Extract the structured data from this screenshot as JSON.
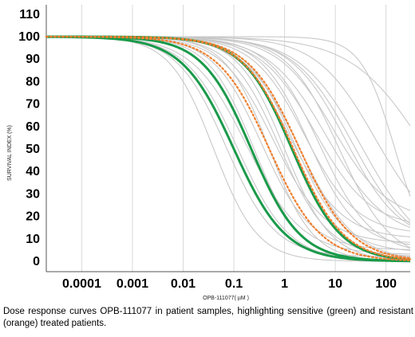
{
  "caption": "Dose response curves OPB-111077 in patient samples, highlighting sensitive (green) and resistant (orange) treated patients.",
  "chart_data": {
    "type": "line",
    "title": "",
    "xlabel": "OPB-111077( µM )",
    "ylabel": "SURVIVAL INDEX (%)",
    "xscale": "log",
    "xlim": [
      2e-05,
      300
    ],
    "ylim": [
      0,
      110
    ],
    "xticks": [
      0.0001,
      0.001,
      0.01,
      0.1,
      1,
      10,
      100
    ],
    "xtick_labels": [
      "0.0001",
      "0.001",
      "0.01",
      "0.1",
      "1",
      "10",
      "100"
    ],
    "yticks": [
      0,
      10,
      20,
      30,
      40,
      50,
      60,
      70,
      80,
      90,
      100,
      110
    ],
    "grid": "vertical",
    "model": "sigmoid: y = bottom + (top - bottom) / (1 + (x / ic50)^hill)",
    "colors": {
      "untreated": "#c8c8c8",
      "sensitive": "#1a9a4a",
      "resistant": "#f08030"
    },
    "series": [
      {
        "group": "untreated",
        "ic50": 0.04,
        "hill": 1.0,
        "top": 100,
        "bottom": 0
      },
      {
        "group": "untreated",
        "ic50": 0.07,
        "hill": 0.9,
        "top": 100,
        "bottom": 2
      },
      {
        "group": "untreated",
        "ic50": 0.12,
        "hill": 0.85,
        "top": 100,
        "bottom": 0
      },
      {
        "group": "untreated",
        "ic50": 0.18,
        "hill": 0.8,
        "top": 100,
        "bottom": 3
      },
      {
        "group": "untreated",
        "ic50": 0.25,
        "hill": 0.95,
        "top": 100,
        "bottom": 0
      },
      {
        "group": "untreated",
        "ic50": 0.35,
        "hill": 0.9,
        "top": 100,
        "bottom": 5
      },
      {
        "group": "untreated",
        "ic50": 0.5,
        "hill": 1.0,
        "top": 100,
        "bottom": 0
      },
      {
        "group": "untreated",
        "ic50": 0.6,
        "hill": 0.85,
        "top": 100,
        "bottom": 8
      },
      {
        "group": "untreated",
        "ic50": 0.8,
        "hill": 0.9,
        "top": 100,
        "bottom": 2
      },
      {
        "group": "untreated",
        "ic50": 1.0,
        "hill": 0.95,
        "top": 100,
        "bottom": 0
      },
      {
        "group": "untreated",
        "ic50": 1.3,
        "hill": 0.85,
        "top": 100,
        "bottom": 10
      },
      {
        "group": "untreated",
        "ic50": 1.6,
        "hill": 0.9,
        "top": 100,
        "bottom": 4
      },
      {
        "group": "untreated",
        "ic50": 2.0,
        "hill": 0.8,
        "top": 100,
        "bottom": 0
      },
      {
        "group": "untreated",
        "ic50": 2.5,
        "hill": 0.85,
        "top": 100,
        "bottom": 12
      },
      {
        "group": "untreated",
        "ic50": 3.0,
        "hill": 0.9,
        "top": 100,
        "bottom": 6
      },
      {
        "group": "untreated",
        "ic50": 4.0,
        "hill": 0.8,
        "top": 100,
        "bottom": 15
      },
      {
        "group": "untreated",
        "ic50": 5.0,
        "hill": 0.85,
        "top": 100,
        "bottom": 3
      },
      {
        "group": "untreated",
        "ic50": 7.0,
        "hill": 0.75,
        "top": 100,
        "bottom": 10
      },
      {
        "group": "untreated",
        "ic50": 9.0,
        "hill": 0.8,
        "top": 100,
        "bottom": 18
      },
      {
        "group": "untreated",
        "ic50": 12.0,
        "hill": 0.85,
        "top": 100,
        "bottom": 0
      },
      {
        "group": "untreated",
        "ic50": 16.0,
        "hill": 0.8,
        "top": 100,
        "bottom": 8
      },
      {
        "group": "untreated",
        "ic50": 22.0,
        "hill": 0.75,
        "top": 100,
        "bottom": 5
      },
      {
        "group": "untreated",
        "ic50": 35.0,
        "hill": 0.7,
        "top": 100,
        "bottom": 0
      },
      {
        "group": "untreated",
        "ic50": 60.0,
        "hill": 0.75,
        "top": 100,
        "bottom": 10
      },
      {
        "group": "untreated",
        "ic50": 150.0,
        "hill": 1.3,
        "top": 100,
        "bottom": 0
      },
      {
        "group": "untreated",
        "ic50": 600.0,
        "hill": 0.6,
        "top": 100,
        "bottom": 0
      },
      {
        "group": "sensitive",
        "ic50": 0.1,
        "hill": 0.85,
        "top": 100,
        "bottom": 0
      },
      {
        "group": "sensitive",
        "ic50": 0.22,
        "hill": 0.9,
        "top": 100,
        "bottom": 0
      },
      {
        "group": "sensitive",
        "ic50": 1.4,
        "hill": 0.9,
        "top": 100,
        "bottom": 0
      },
      {
        "group": "resistant",
        "ic50": 0.5,
        "hill": 0.85,
        "top": 100,
        "bottom": 0
      },
      {
        "group": "resistant",
        "ic50": 1.5,
        "hill": 0.88,
        "top": 100,
        "bottom": 0
      },
      {
        "group": "resistant",
        "ic50": 2.0,
        "hill": 0.85,
        "top": 100,
        "bottom": 0
      }
    ]
  }
}
